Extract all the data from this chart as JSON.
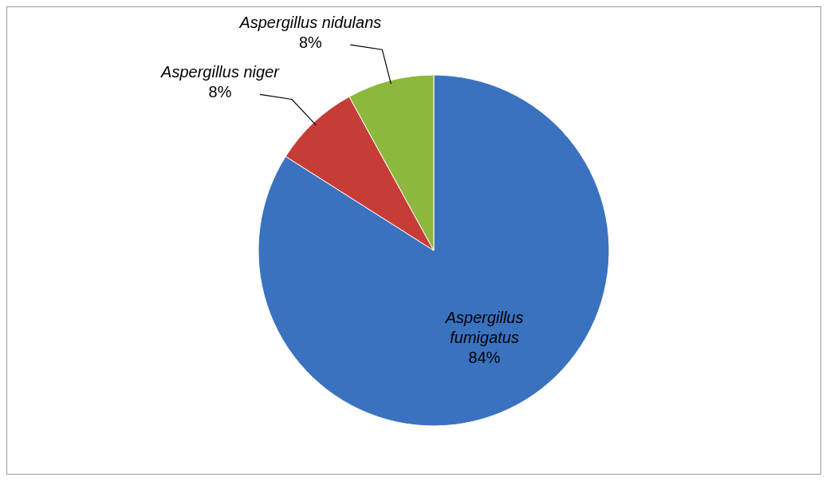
{
  "chart_data": {
    "type": "pie",
    "categories": [
      "Aspergillus fumigatus",
      "Aspergillus niger",
      "Aspergillus nidulans"
    ],
    "values": [
      84,
      8,
      8
    ],
    "colors": [
      "#3a72c0",
      "#c63d38",
      "#8cb83e"
    ],
    "value_labels": [
      "84%",
      "8%",
      "8%"
    ],
    "legend": false
  }
}
